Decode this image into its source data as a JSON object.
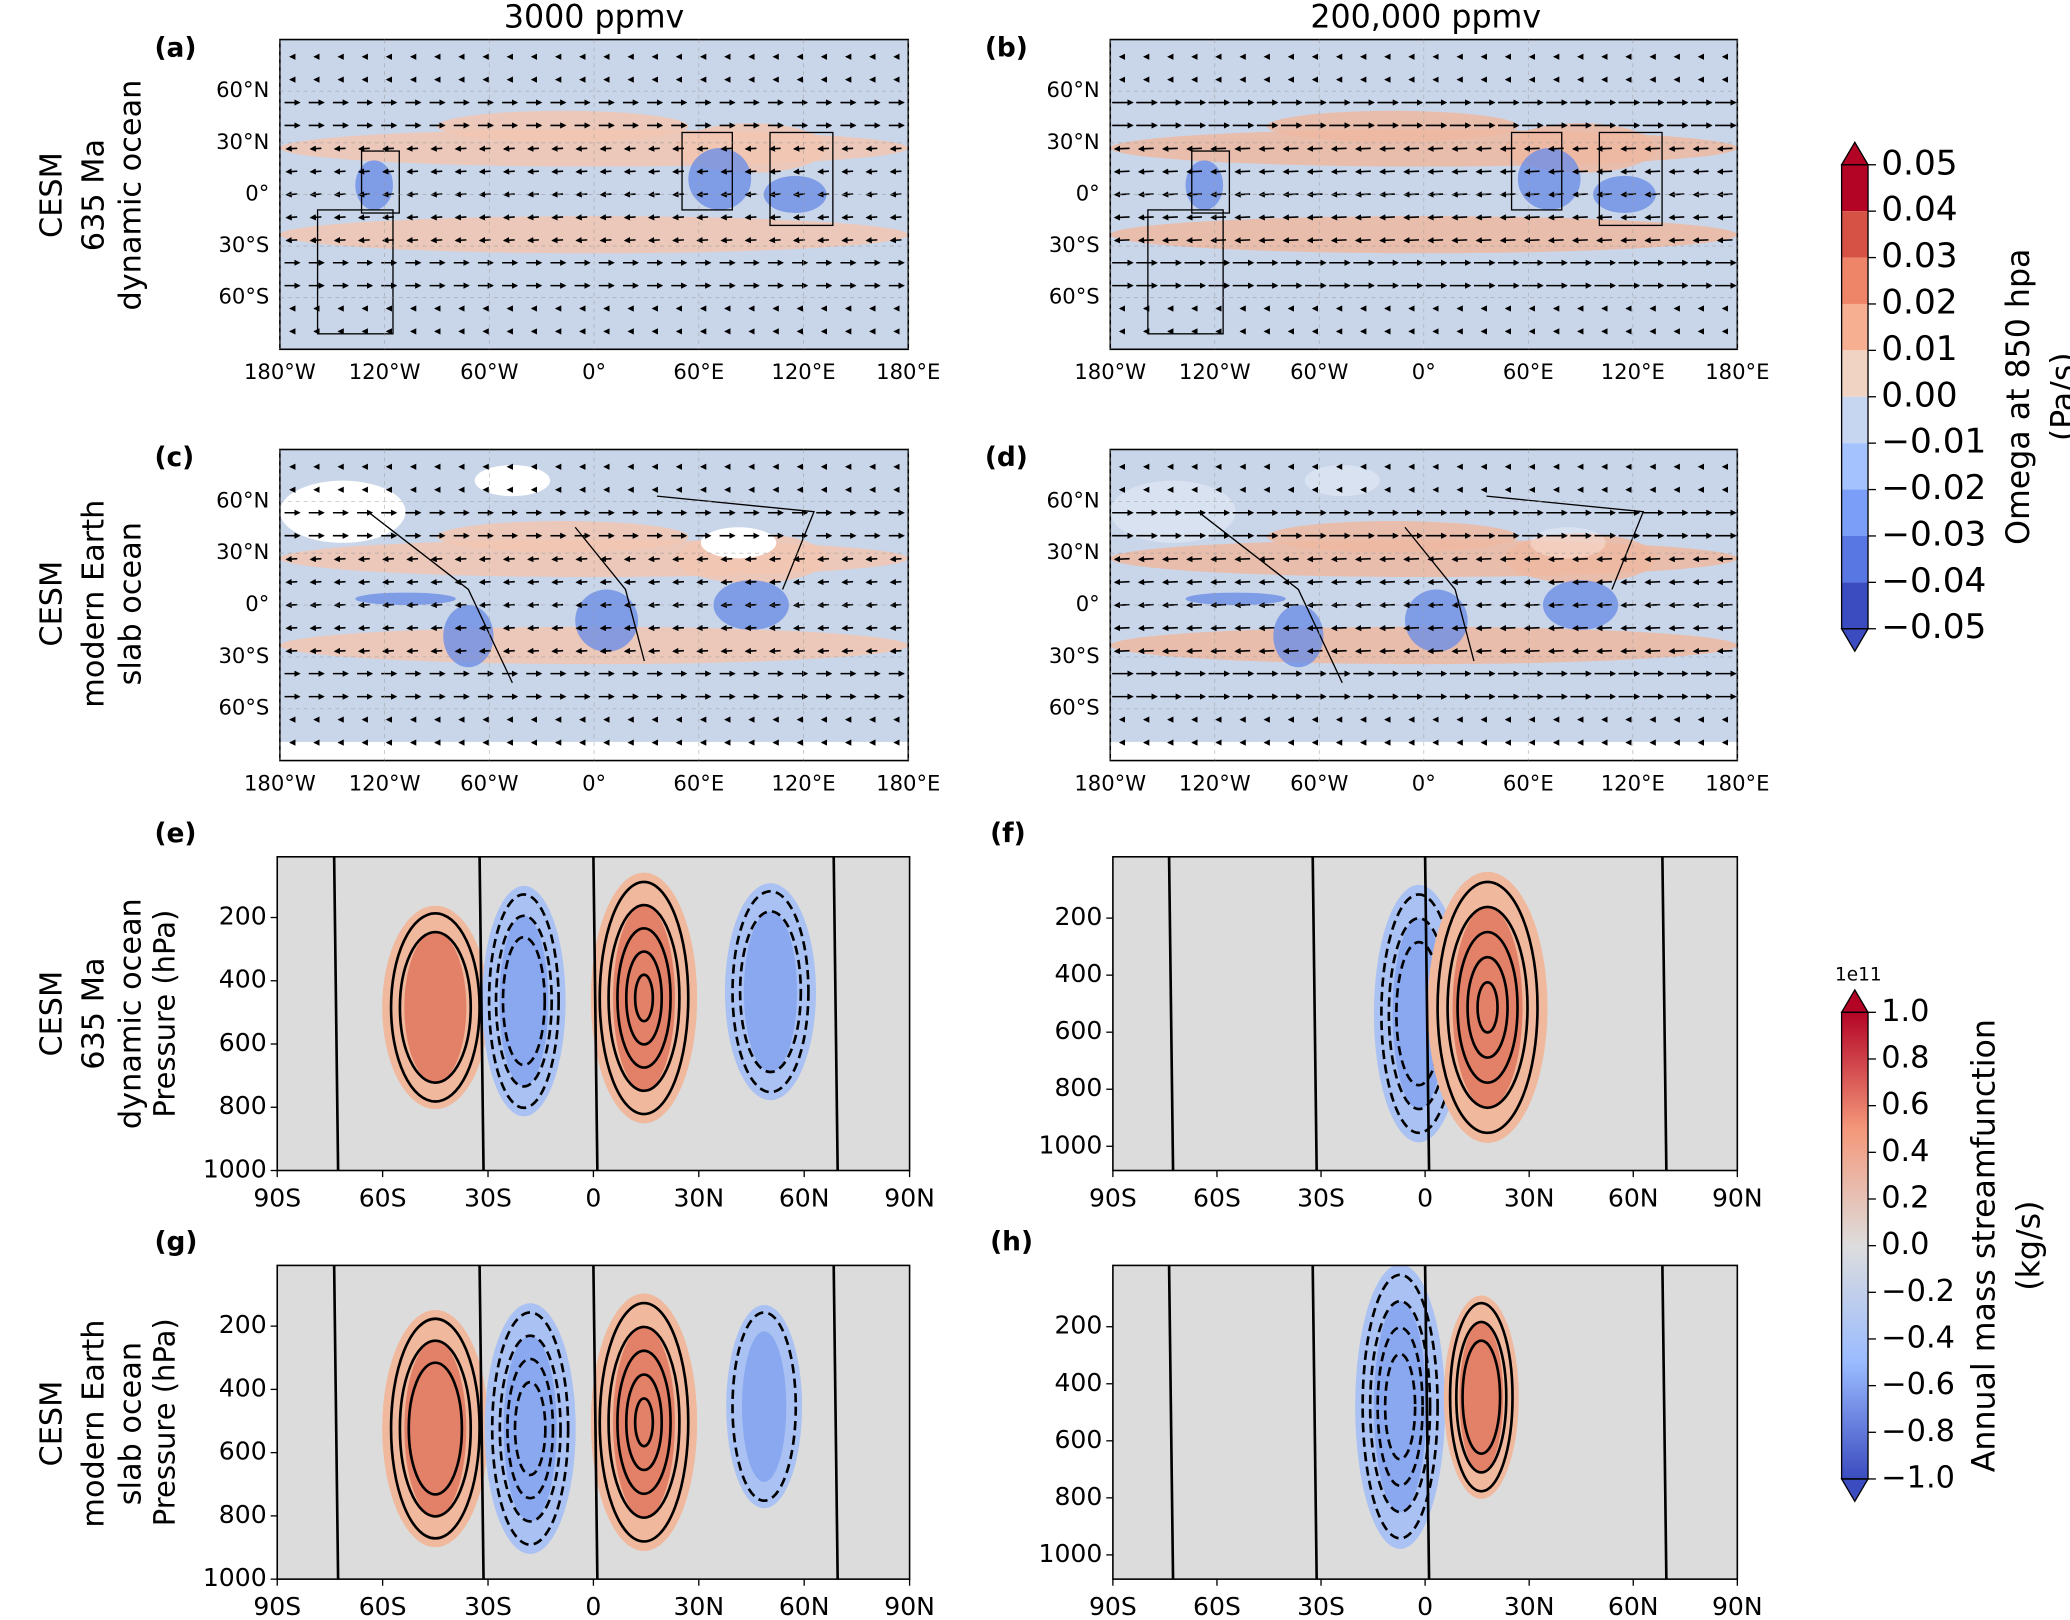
{
  "columns": [
    "3000 ppmv",
    "200,000 ppmv"
  ],
  "rows": [
    [
      "CESM",
      "635 Ma",
      "dynamic ocean"
    ],
    [
      "CESM",
      "modern Earth",
      "slab ocean"
    ],
    [
      "CESM",
      "635 Ma",
      "dynamic ocean"
    ],
    [
      "CESM",
      "modern Earth",
      "slab ocean"
    ]
  ],
  "chart_data": [
    {
      "type": "map",
      "label": "(a)",
      "xlim": [
        -180,
        180
      ],
      "ylim": [
        -90,
        90
      ],
      "xticks": [
        {
          "value": -180,
          "label": "180°W"
        },
        {
          "value": -120,
          "label": "120°W"
        },
        {
          "value": -60,
          "label": "60°W"
        },
        {
          "value": 0,
          "label": "0°"
        },
        {
          "value": 60,
          "label": "60°E"
        },
        {
          "value": 120,
          "label": "120°E"
        },
        {
          "value": 180,
          "label": "180°E"
        }
      ],
      "yticks": [
        {
          "value": 60,
          "label": "60°N"
        },
        {
          "value": 30,
          "label": "30°N"
        },
        {
          "value": 0,
          "label": "0°"
        },
        {
          "value": -30,
          "label": "30°S"
        },
        {
          "value": -60,
          "label": "60°S"
        }
      ]
    },
    {
      "type": "map",
      "label": "(b)",
      "xlim": [
        -180,
        180
      ],
      "ylim": [
        -90,
        90
      ],
      "xticks": [
        {
          "value": -180,
          "label": "180°W"
        },
        {
          "value": -120,
          "label": "120°W"
        },
        {
          "value": -60,
          "label": "60°W"
        },
        {
          "value": 0,
          "label": "0°"
        },
        {
          "value": 60,
          "label": "60°E"
        },
        {
          "value": 120,
          "label": "120°E"
        },
        {
          "value": 180,
          "label": "180°E"
        }
      ],
      "yticks": [
        {
          "value": 60,
          "label": "60°N"
        },
        {
          "value": 30,
          "label": "30°N"
        },
        {
          "value": 0,
          "label": "0°"
        },
        {
          "value": -30,
          "label": "30°S"
        },
        {
          "value": -60,
          "label": "60°S"
        }
      ]
    },
    {
      "type": "map",
      "label": "(c)",
      "xlim": [
        -180,
        180
      ],
      "ylim": [
        -90,
        90
      ],
      "xticks": [
        {
          "value": -180,
          "label": "180°W"
        },
        {
          "value": -120,
          "label": "120°W"
        },
        {
          "value": -60,
          "label": "60°W"
        },
        {
          "value": 0,
          "label": "0°"
        },
        {
          "value": 60,
          "label": "60°E"
        },
        {
          "value": 120,
          "label": "120°E"
        },
        {
          "value": 180,
          "label": "180°E"
        }
      ],
      "yticks": [
        {
          "value": 60,
          "label": "60°N"
        },
        {
          "value": 30,
          "label": "30°N"
        },
        {
          "value": 0,
          "label": "0°"
        },
        {
          "value": -30,
          "label": "30°S"
        },
        {
          "value": -60,
          "label": "60°S"
        }
      ]
    },
    {
      "type": "map",
      "label": "(d)",
      "xlim": [
        -180,
        180
      ],
      "ylim": [
        -90,
        90
      ],
      "xticks": [
        {
          "value": -180,
          "label": "180°W"
        },
        {
          "value": -120,
          "label": "120°W"
        },
        {
          "value": -60,
          "label": "60°W"
        },
        {
          "value": 0,
          "label": "0°"
        },
        {
          "value": 60,
          "label": "60°E"
        },
        {
          "value": 120,
          "label": "120°E"
        },
        {
          "value": 180,
          "label": "180°E"
        }
      ],
      "yticks": [
        {
          "value": 60,
          "label": "60°N"
        },
        {
          "value": 30,
          "label": "30°N"
        },
        {
          "value": 0,
          "label": "0°"
        },
        {
          "value": -30,
          "label": "30°S"
        },
        {
          "value": -60,
          "label": "60°S"
        }
      ]
    },
    {
      "type": "contour",
      "label": "(e)",
      "ylabel": "Pressure (hPa)",
      "xlim": [
        -90,
        90
      ],
      "ylim": [
        1000,
        8
      ],
      "xticks": [
        {
          "value": -90,
          "label": "90S"
        },
        {
          "value": -60,
          "label": "60S"
        },
        {
          "value": -30,
          "label": "30S"
        },
        0,
        {
          "value": 30,
          "label": "30N"
        },
        {
          "value": 60,
          "label": "60N"
        },
        {
          "value": 90,
          "label": "90N"
        }
      ],
      "yticks": [
        200,
        400,
        600,
        800,
        1000
      ]
    },
    {
      "type": "contour",
      "label": "(f)",
      "xlim": [
        -90,
        90
      ],
      "ylim": [
        1085,
        -15
      ],
      "xticks": [
        {
          "value": -90,
          "label": "90S"
        },
        {
          "value": -60,
          "label": "60S"
        },
        {
          "value": -30,
          "label": "30S"
        },
        0,
        {
          "value": 30,
          "label": "30N"
        },
        {
          "value": 60,
          "label": "60N"
        },
        {
          "value": 90,
          "label": "90N"
        }
      ],
      "yticks": [
        200,
        400,
        600,
        800,
        1000
      ]
    },
    {
      "type": "contour",
      "label": "(g)",
      "ylabel": "Pressure (hPa)",
      "xlim": [
        -90,
        90
      ],
      "ylim": [
        1000,
        8
      ],
      "xticks": [
        {
          "value": -90,
          "label": "90S"
        },
        {
          "value": -60,
          "label": "60S"
        },
        {
          "value": -30,
          "label": "30S"
        },
        0,
        {
          "value": 30,
          "label": "30N"
        },
        {
          "value": 60,
          "label": "60N"
        },
        {
          "value": 90,
          "label": "90N"
        }
      ],
      "yticks": [
        200,
        400,
        600,
        800,
        1000
      ]
    },
    {
      "type": "contour",
      "label": "(h)",
      "xlim": [
        -90,
        90
      ],
      "ylim": [
        1085,
        -15
      ],
      "xticks": [
        {
          "value": -90,
          "label": "90S"
        },
        {
          "value": -60,
          "label": "60S"
        },
        {
          "value": -30,
          "label": "30S"
        },
        0,
        {
          "value": 30,
          "label": "30N"
        },
        {
          "value": 60,
          "label": "60N"
        },
        {
          "value": 90,
          "label": "90N"
        }
      ],
      "yticks": [
        200,
        400,
        600,
        800,
        1000
      ]
    },
    {
      "type": "colorbar",
      "label": [
        "Omega at 850 hpa",
        "(Pa/s)"
      ],
      "ylim": [
        -0.05,
        0.05
      ],
      "extend": "both",
      "yticks": [
        {
          "value": 0.05,
          "label": "0.05"
        },
        0.04,
        0.03,
        0.02,
        0.01,
        {
          "value": 0,
          "label": "0.00"
        },
        {
          "value": -0.01,
          "label": "−0.01"
        },
        {
          "value": -0.02,
          "label": "−0.02"
        },
        {
          "value": -0.03,
          "label": "−0.03"
        },
        {
          "value": -0.04,
          "label": "−0.04"
        },
        {
          "value": -0.05,
          "label": "−0.05"
        }
      ],
      "colors": [
        "#b40426",
        "#d65244",
        "#ee8468",
        "#f7af91",
        "#f0d3c2",
        "#c6d6f1",
        "#a3c2fe",
        "#7b9ff9",
        "#5977e3",
        "#3b4cc0"
      ]
    },
    {
      "type": "colorbar",
      "label": [
        "Annual mass streamfunction",
        "(kg/s)"
      ],
      "multiplier": "1e11",
      "ylim": [
        -1,
        1
      ],
      "extend": "both",
      "continuous": true,
      "yticks": [
        {
          "value": 1,
          "label": "1.0"
        },
        0.8,
        0.6,
        0.4,
        0.2,
        {
          "value": 0,
          "label": "0.0"
        },
        {
          "value": -0.2,
          "label": "−0.2"
        },
        {
          "value": -0.4,
          "label": "−0.4"
        },
        {
          "value": -0.6,
          "label": "−0.6"
        },
        {
          "value": -0.8,
          "label": "−0.8"
        },
        {
          "value": -1,
          "label": "−1.0"
        }
      ],
      "colors": [
        "#b40426",
        "#f4987a",
        "#dddddd",
        "#9abbff",
        "#3b4cc0"
      ]
    }
  ]
}
